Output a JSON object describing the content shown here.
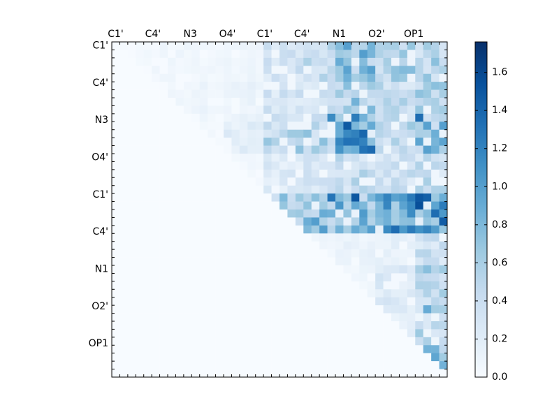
{
  "chart_data": {
    "type": "heatmap",
    "title": "",
    "xlabel": "",
    "ylabel": "",
    "x_tick_labels": [
      "C1'",
      "C4'",
      "N3",
      "O4'",
      "C1'",
      "C4'",
      "N1",
      "O2'",
      "OP1"
    ],
    "y_tick_labels": [
      "C1'",
      "C4'",
      "N3",
      "O4'",
      "C1'",
      "C4'",
      "N1",
      "O2'",
      "OP1"
    ],
    "colorbar": {
      "colormap": "Blues",
      "range": [
        0.0,
        1.76
      ],
      "ticks": [
        "0.0",
        "0.2",
        "0.4",
        "0.6",
        "0.8",
        "1.0",
        "1.2",
        "1.4",
        "1.6"
      ],
      "tick_values": [
        0.0,
        0.2,
        0.4,
        0.6,
        0.8,
        1.0,
        1.2,
        1.4,
        1.6
      ]
    },
    "matrix_size": 42,
    "structure": "upper triangular; lower triangle ~0",
    "block_levels": [
      [
        0.05,
        0.07,
        0.06,
        0.08,
        0.35,
        0.45,
        0.75,
        0.6,
        0.55
      ],
      [
        0.0,
        0.07,
        0.09,
        0.12,
        0.35,
        0.4,
        0.65,
        0.45,
        0.55
      ],
      [
        0.0,
        0.0,
        0.05,
        0.2,
        0.55,
        0.55,
        1.1,
        0.5,
        0.75
      ],
      [
        0.0,
        0.0,
        0.0,
        0.05,
        0.25,
        0.3,
        0.45,
        0.4,
        0.45
      ],
      [
        0.0,
        0.0,
        0.0,
        0.0,
        0.7,
        0.75,
        0.8,
        0.95,
        1.1
      ],
      [
        0.0,
        0.0,
        0.0,
        0.0,
        0.0,
        0.08,
        0.12,
        0.15,
        0.4
      ],
      [
        0.0,
        0.0,
        0.0,
        0.0,
        0.0,
        0.0,
        0.08,
        0.25,
        0.5
      ],
      [
        0.0,
        0.0,
        0.0,
        0.0,
        0.0,
        0.0,
        0.0,
        0.2,
        0.5
      ],
      [
        0.0,
        0.0,
        0.0,
        0.0,
        0.0,
        0.0,
        0.0,
        0.0,
        0.7
      ]
    ],
    "peak_cells": [
      {
        "row": 9,
        "col": 38,
        "value": 1.35
      },
      {
        "row": 9,
        "col": 27,
        "value": 1.15
      },
      {
        "row": 9,
        "col": 30,
        "value": 1.25
      },
      {
        "row": 19,
        "col": 30,
        "value": 1.5
      },
      {
        "row": 19,
        "col": 27,
        "value": 1.3
      },
      {
        "row": 19,
        "col": 38,
        "value": 1.5
      },
      {
        "row": 20,
        "col": 38,
        "value": 1.55
      },
      {
        "row": 23,
        "col": 34,
        "value": 1.15
      },
      {
        "row": 23,
        "col": 35,
        "value": 1.35
      },
      {
        "row": 23,
        "col": 39,
        "value": 1.2
      },
      {
        "row": 38,
        "col": 39,
        "value": 0.85
      },
      {
        "row": 33,
        "col": 39,
        "value": 0.9
      },
      {
        "row": 28,
        "col": 39,
        "value": 0.75
      }
    ]
  }
}
